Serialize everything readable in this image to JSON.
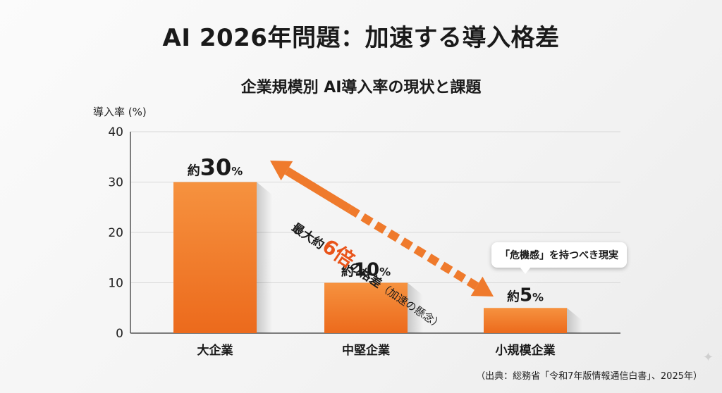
{
  "title": "AI 2026年問題：加速する導入格差",
  "subtitle": "企業規模別 AI導入率の現状と課題",
  "source": "（出典：総務省「令和7年版情報通信白書」、2025年）",
  "callout": "「危機感」を持つべき現実",
  "annotation": {
    "prefix": "最大約",
    "number": "6倍",
    "middle": "の格差",
    "suffix": "（加速の懸念）"
  },
  "colors": {
    "bar_top": "#f6923f",
    "bar_bottom": "#ec6a1c",
    "accent": "#e9541a",
    "arrow": "#ef7a2c"
  },
  "chart_data": {
    "type": "bar",
    "title": "企業規模別 AI導入率の現状と課題",
    "xlabel": "",
    "ylabel": "導入率 (%)",
    "ylim": [
      0,
      40
    ],
    "yticks": [
      0,
      10,
      20,
      30,
      40
    ],
    "categories": [
      "大企業",
      "中堅企業",
      "小規模企業"
    ],
    "values": [
      30,
      10,
      5
    ],
    "data_labels": [
      {
        "prefix": "約",
        "num": "30",
        "unit": "%"
      },
      {
        "prefix": "約",
        "num": "10",
        "unit": "%"
      },
      {
        "prefix": "約",
        "num": "5",
        "unit": "%"
      }
    ],
    "grid": true
  }
}
